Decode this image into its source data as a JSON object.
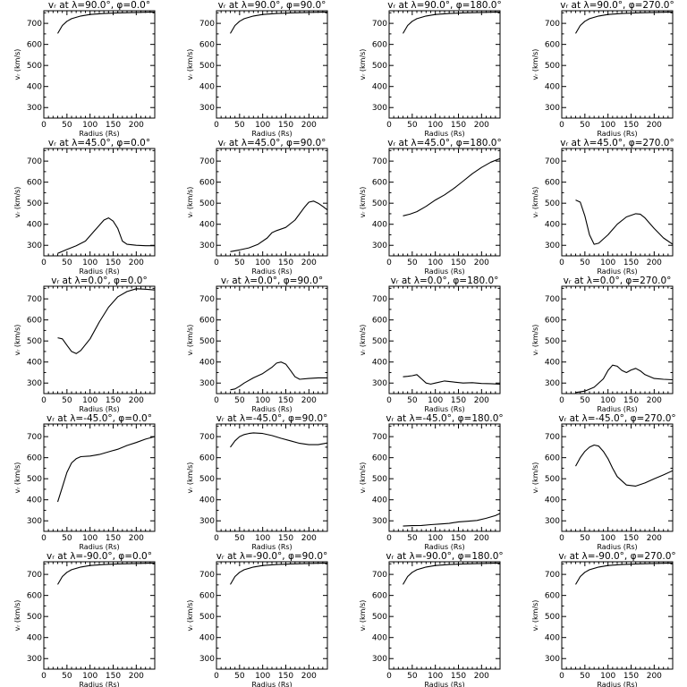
{
  "chart_data": [
    {
      "type": "line",
      "title": "vᵣ at λ=90.0°, φ=0.0°",
      "xlabel": "Radius (Rs)",
      "ylabel": "vᵣ (km/s)",
      "xlim": [
        0,
        240
      ],
      "ylim": [
        250,
        760
      ],
      "xticks": [
        "0",
        "50",
        "100",
        "150",
        "200"
      ],
      "yticks": [
        "300",
        "400",
        "500",
        "600",
        "700"
      ],
      "series": [
        {
          "x": [
            30,
            40,
            50,
            60,
            80,
            100,
            130,
            160,
            200,
            240
          ],
          "values": [
            652,
            690,
            710,
            722,
            735,
            742,
            747,
            750,
            752,
            754
          ]
        }
      ]
    },
    {
      "type": "line",
      "title": "vᵣ at λ=90.0°, φ=90.0°",
      "xlabel": "Radius (Rs)",
      "ylabel": "vᵣ (km/s)",
      "xlim": [
        0,
        240
      ],
      "ylim": [
        250,
        760
      ],
      "xticks": [
        "0",
        "50",
        "100",
        "150",
        "200"
      ],
      "yticks": [
        "300",
        "400",
        "500",
        "600",
        "700"
      ],
      "series": [
        {
          "x": [
            30,
            40,
            50,
            60,
            80,
            100,
            130,
            160,
            200,
            240
          ],
          "values": [
            652,
            690,
            710,
            722,
            735,
            742,
            747,
            750,
            752,
            754
          ]
        }
      ]
    },
    {
      "type": "line",
      "title": "vᵣ at λ=90.0°, φ=180.0°",
      "xlabel": "Radius (Rs)",
      "ylabel": "vᵣ (km/s)",
      "xlim": [
        0,
        240
      ],
      "ylim": [
        250,
        760
      ],
      "xticks": [
        "0",
        "50",
        "100",
        "150",
        "200"
      ],
      "yticks": [
        "300",
        "400",
        "500",
        "600",
        "700"
      ],
      "series": [
        {
          "x": [
            30,
            40,
            50,
            60,
            80,
            100,
            130,
            160,
            200,
            240
          ],
          "values": [
            652,
            690,
            710,
            722,
            735,
            742,
            747,
            750,
            752,
            754
          ]
        }
      ]
    },
    {
      "type": "line",
      "title": "vᵣ at λ=90.0°, φ=270.0°",
      "xlabel": "Radius (Rs)",
      "ylabel": "vᵣ (km/s)",
      "xlim": [
        0,
        240
      ],
      "ylim": [
        250,
        760
      ],
      "xticks": [
        "0",
        "50",
        "100",
        "150",
        "200"
      ],
      "yticks": [
        "300",
        "400",
        "500",
        "600",
        "700"
      ],
      "series": [
        {
          "x": [
            30,
            40,
            50,
            60,
            80,
            100,
            130,
            160,
            200,
            240
          ],
          "values": [
            652,
            690,
            710,
            722,
            735,
            742,
            747,
            750,
            752,
            754
          ]
        }
      ]
    },
    {
      "type": "line",
      "title": "vᵣ at λ=45.0°, φ=0.0°",
      "xlabel": "Radius (Rs)",
      "ylabel": "vᵣ (km/s)",
      "xlim": [
        0,
        240
      ],
      "ylim": [
        250,
        760
      ],
      "xticks": [
        "0",
        "50",
        "100",
        "150",
        "200"
      ],
      "yticks": [
        "300",
        "400",
        "500",
        "600",
        "700"
      ],
      "series": [
        {
          "x": [
            30,
            50,
            70,
            90,
            110,
            130,
            140,
            150,
            160,
            170,
            180,
            200,
            220,
            240
          ],
          "values": [
            262,
            280,
            298,
            320,
            370,
            420,
            430,
            415,
            380,
            320,
            305,
            300,
            298,
            298
          ]
        }
      ]
    },
    {
      "type": "line",
      "title": "vᵣ at λ=45.0°, φ=90.0°",
      "xlabel": "Radius (Rs)",
      "ylabel": "vᵣ (km/s)",
      "xlim": [
        0,
        240
      ],
      "ylim": [
        250,
        760
      ],
      "xticks": [
        "0",
        "50",
        "100",
        "150",
        "200"
      ],
      "yticks": [
        "300",
        "400",
        "500",
        "600",
        "700"
      ],
      "series": [
        {
          "x": [
            30,
            50,
            70,
            90,
            110,
            120,
            130,
            150,
            170,
            190,
            200,
            210,
            220,
            230,
            240
          ],
          "values": [
            270,
            278,
            288,
            305,
            335,
            360,
            370,
            385,
            420,
            480,
            505,
            510,
            500,
            485,
            468
          ]
        }
      ]
    },
    {
      "type": "line",
      "title": "vᵣ at λ=45.0°, φ=180.0°",
      "xlabel": "Radius (Rs)",
      "ylabel": "vᵣ (km/s)",
      "xlim": [
        0,
        240
      ],
      "ylim": [
        250,
        760
      ],
      "xticks": [
        "0",
        "50",
        "100",
        "150",
        "200"
      ],
      "yticks": [
        "300",
        "400",
        "500",
        "600",
        "700"
      ],
      "series": [
        {
          "x": [
            30,
            45,
            60,
            80,
            100,
            120,
            140,
            160,
            180,
            200,
            220,
            240
          ],
          "values": [
            440,
            448,
            460,
            485,
            515,
            540,
            570,
            605,
            640,
            670,
            695,
            712
          ]
        }
      ]
    },
    {
      "type": "line",
      "title": "vᵣ at λ=45.0°, φ=270.0°",
      "xlabel": "Radius (Rs)",
      "ylabel": "vᵣ (km/s)",
      "xlim": [
        0,
        240
      ],
      "ylim": [
        250,
        760
      ],
      "xticks": [
        "0",
        "50",
        "100",
        "150",
        "200"
      ],
      "yticks": [
        "300",
        "400",
        "500",
        "600",
        "700"
      ],
      "series": [
        {
          "x": [
            30,
            40,
            50,
            60,
            70,
            80,
            100,
            120,
            140,
            160,
            170,
            180,
            200,
            220,
            240
          ],
          "values": [
            515,
            505,
            440,
            350,
            305,
            310,
            350,
            400,
            435,
            450,
            448,
            430,
            380,
            335,
            305
          ]
        }
      ]
    },
    {
      "type": "line",
      "title": "vᵣ at λ=0.0°, φ=0.0°",
      "xlabel": "Radius (Rs)",
      "ylabel": "vᵣ (km/s)",
      "xlim": [
        0,
        240
      ],
      "ylim": [
        250,
        760
      ],
      "xticks": [
        "0",
        "50",
        "100",
        "150",
        "200"
      ],
      "yticks": [
        "300",
        "400",
        "500",
        "600",
        "700"
      ],
      "series": [
        {
          "x": [
            30,
            40,
            50,
            60,
            70,
            80,
            100,
            120,
            140,
            160,
            180,
            200,
            220,
            240
          ],
          "values": [
            515,
            510,
            480,
            450,
            440,
            455,
            510,
            590,
            660,
            710,
            735,
            748,
            746,
            742
          ]
        }
      ]
    },
    {
      "type": "line",
      "title": "vᵣ at λ=0.0°, φ=90.0°",
      "xlabel": "Radius (Rs)",
      "ylabel": "vᵣ (km/s)",
      "xlim": [
        0,
        240
      ],
      "ylim": [
        250,
        760
      ],
      "xticks": [
        "0",
        "50",
        "100",
        "150",
        "200"
      ],
      "yticks": [
        "300",
        "400",
        "500",
        "600",
        "700"
      ],
      "series": [
        {
          "x": [
            30,
            40,
            50,
            60,
            80,
            100,
            120,
            130,
            140,
            150,
            160,
            170,
            180,
            200,
            220,
            240
          ],
          "values": [
            268,
            272,
            285,
            300,
            325,
            345,
            375,
            395,
            400,
            390,
            360,
            330,
            318,
            322,
            325,
            325
          ]
        }
      ]
    },
    {
      "type": "line",
      "title": "vᵣ at λ=0.0°, φ=180.0°",
      "xlabel": "Radius (Rs)",
      "ylabel": "vᵣ (km/s)",
      "xlim": [
        0,
        240
      ],
      "ylim": [
        250,
        760
      ],
      "xticks": [
        "0",
        "50",
        "100",
        "150",
        "200"
      ],
      "yticks": [
        "300",
        "400",
        "500",
        "600",
        "700"
      ],
      "series": [
        {
          "x": [
            30,
            40,
            50,
            60,
            70,
            80,
            90,
            100,
            120,
            140,
            160,
            180,
            200,
            220,
            240
          ],
          "values": [
            330,
            332,
            335,
            340,
            320,
            300,
            295,
            300,
            310,
            305,
            300,
            302,
            298,
            297,
            295
          ]
        }
      ]
    },
    {
      "type": "line",
      "title": "vᵣ at λ=0.0°, φ=270.0°",
      "xlabel": "Radius (Rs)",
      "ylabel": "vᵣ (km/s)",
      "xlim": [
        0,
        240
      ],
      "ylim": [
        250,
        760
      ],
      "xticks": [
        "0",
        "50",
        "100",
        "150",
        "200"
      ],
      "yticks": [
        "300",
        "400",
        "500",
        "600",
        "700"
      ],
      "series": [
        {
          "x": [
            30,
            50,
            70,
            90,
            100,
            110,
            120,
            130,
            140,
            150,
            160,
            170,
            180,
            200,
            220,
            240
          ],
          "values": [
            255,
            262,
            280,
            320,
            360,
            385,
            380,
            360,
            350,
            362,
            370,
            358,
            340,
            322,
            318,
            316
          ]
        }
      ]
    },
    {
      "type": "line",
      "title": "vᵣ at λ=-45.0°, φ=0.0°",
      "xlabel": "Radius (Rs)",
      "ylabel": "vᵣ (km/s)",
      "xlim": [
        0,
        240
      ],
      "ylim": [
        250,
        760
      ],
      "xticks": [
        "0",
        "50",
        "100",
        "150",
        "200"
      ],
      "yticks": [
        "300",
        "400",
        "500",
        "600",
        "700"
      ],
      "series": [
        {
          "x": [
            30,
            40,
            50,
            60,
            70,
            80,
            100,
            120,
            140,
            160,
            180,
            200,
            220,
            240
          ],
          "values": [
            390,
            460,
            530,
            575,
            595,
            605,
            608,
            615,
            628,
            640,
            658,
            672,
            688,
            700
          ]
        }
      ]
    },
    {
      "type": "line",
      "title": "vᵣ at λ=-45.0°, φ=90.0°",
      "xlabel": "Radius (Rs)",
      "ylabel": "vᵣ (km/s)",
      "xlim": [
        0,
        240
      ],
      "ylim": [
        250,
        760
      ],
      "xticks": [
        "0",
        "50",
        "100",
        "150",
        "200"
      ],
      "yticks": [
        "300",
        "400",
        "500",
        "600",
        "700"
      ],
      "series": [
        {
          "x": [
            30,
            40,
            50,
            60,
            70,
            80,
            100,
            120,
            140,
            160,
            180,
            200,
            220,
            240
          ],
          "values": [
            650,
            680,
            700,
            710,
            715,
            718,
            715,
            705,
            692,
            680,
            668,
            662,
            662,
            670
          ]
        }
      ]
    },
    {
      "type": "line",
      "title": "vᵣ at λ=-45.0°, φ=180.0°",
      "xlabel": "Radius (Rs)",
      "ylabel": "vᵣ (km/s)",
      "xlim": [
        0,
        240
      ],
      "ylim": [
        250,
        760
      ],
      "xticks": [
        "0",
        "50",
        "100",
        "150",
        "200"
      ],
      "yticks": [
        "300",
        "400",
        "500",
        "600",
        "700"
      ],
      "series": [
        {
          "x": [
            30,
            50,
            70,
            90,
            110,
            130,
            150,
            170,
            190,
            210,
            230,
            240
          ],
          "values": [
            275,
            277,
            278,
            282,
            285,
            288,
            295,
            298,
            302,
            312,
            325,
            335
          ]
        }
      ]
    },
    {
      "type": "line",
      "title": "vᵣ at λ=-45.0°, φ=270.0°",
      "xlabel": "Radius (Rs)",
      "ylabel": "vᵣ (km/s)",
      "xlim": [
        0,
        240
      ],
      "ylim": [
        250,
        760
      ],
      "xticks": [
        "0",
        "50",
        "100",
        "150",
        "200"
      ],
      "yticks": [
        "300",
        "400",
        "500",
        "600",
        "700"
      ],
      "series": [
        {
          "x": [
            30,
            40,
            50,
            60,
            70,
            80,
            90,
            100,
            110,
            120,
            140,
            160,
            180,
            200,
            220,
            240
          ],
          "values": [
            560,
            600,
            630,
            650,
            660,
            655,
            630,
            595,
            550,
            510,
            470,
            465,
            480,
            500,
            518,
            538
          ]
        }
      ]
    },
    {
      "type": "line",
      "title": "vᵣ at λ=-90.0°, φ=0.0°",
      "xlabel": "Radius (Rs)",
      "ylabel": "vᵣ (km/s)",
      "xlim": [
        0,
        240
      ],
      "ylim": [
        250,
        760
      ],
      "xticks": [
        "0",
        "50",
        "100",
        "150",
        "200"
      ],
      "yticks": [
        "300",
        "400",
        "500",
        "600",
        "700"
      ],
      "series": [
        {
          "x": [
            30,
            40,
            50,
            60,
            80,
            100,
            130,
            160,
            200,
            240
          ],
          "values": [
            652,
            690,
            710,
            722,
            735,
            742,
            747,
            750,
            752,
            754
          ]
        }
      ]
    },
    {
      "type": "line",
      "title": "vᵣ at λ=-90.0°, φ=90.0°",
      "xlabel": "Radius (Rs)",
      "ylabel": "vᵣ (km/s)",
      "xlim": [
        0,
        240
      ],
      "ylim": [
        250,
        760
      ],
      "xticks": [
        "0",
        "50",
        "100",
        "150",
        "200"
      ],
      "yticks": [
        "300",
        "400",
        "500",
        "600",
        "700"
      ],
      "series": [
        {
          "x": [
            30,
            40,
            50,
            60,
            80,
            100,
            130,
            160,
            200,
            240
          ],
          "values": [
            652,
            690,
            710,
            722,
            735,
            742,
            747,
            750,
            752,
            754
          ]
        }
      ]
    },
    {
      "type": "line",
      "title": "vᵣ at λ=-90.0°, φ=180.0°",
      "xlabel": "Radius (Rs)",
      "ylabel": "vᵣ (km/s)",
      "xlim": [
        0,
        240
      ],
      "ylim": [
        250,
        760
      ],
      "xticks": [
        "0",
        "50",
        "100",
        "150",
        "200"
      ],
      "yticks": [
        "300",
        "400",
        "500",
        "600",
        "700"
      ],
      "series": [
        {
          "x": [
            30,
            40,
            50,
            60,
            80,
            100,
            130,
            160,
            200,
            240
          ],
          "values": [
            652,
            690,
            710,
            722,
            735,
            742,
            747,
            750,
            752,
            754
          ]
        }
      ]
    },
    {
      "type": "line",
      "title": "vᵣ at λ=-90.0°, φ=270.0°",
      "xlabel": "Radius (Rs)",
      "ylabel": "vᵣ (km/s)",
      "xlim": [
        0,
        240
      ],
      "ylim": [
        250,
        760
      ],
      "xticks": [
        "0",
        "50",
        "100",
        "150",
        "200"
      ],
      "yticks": [
        "300",
        "400",
        "500",
        "600",
        "700"
      ],
      "series": [
        {
          "x": [
            30,
            40,
            50,
            60,
            80,
            100,
            130,
            160,
            200,
            240
          ],
          "values": [
            652,
            690,
            710,
            722,
            735,
            742,
            747,
            750,
            752,
            754
          ]
        }
      ]
    }
  ]
}
